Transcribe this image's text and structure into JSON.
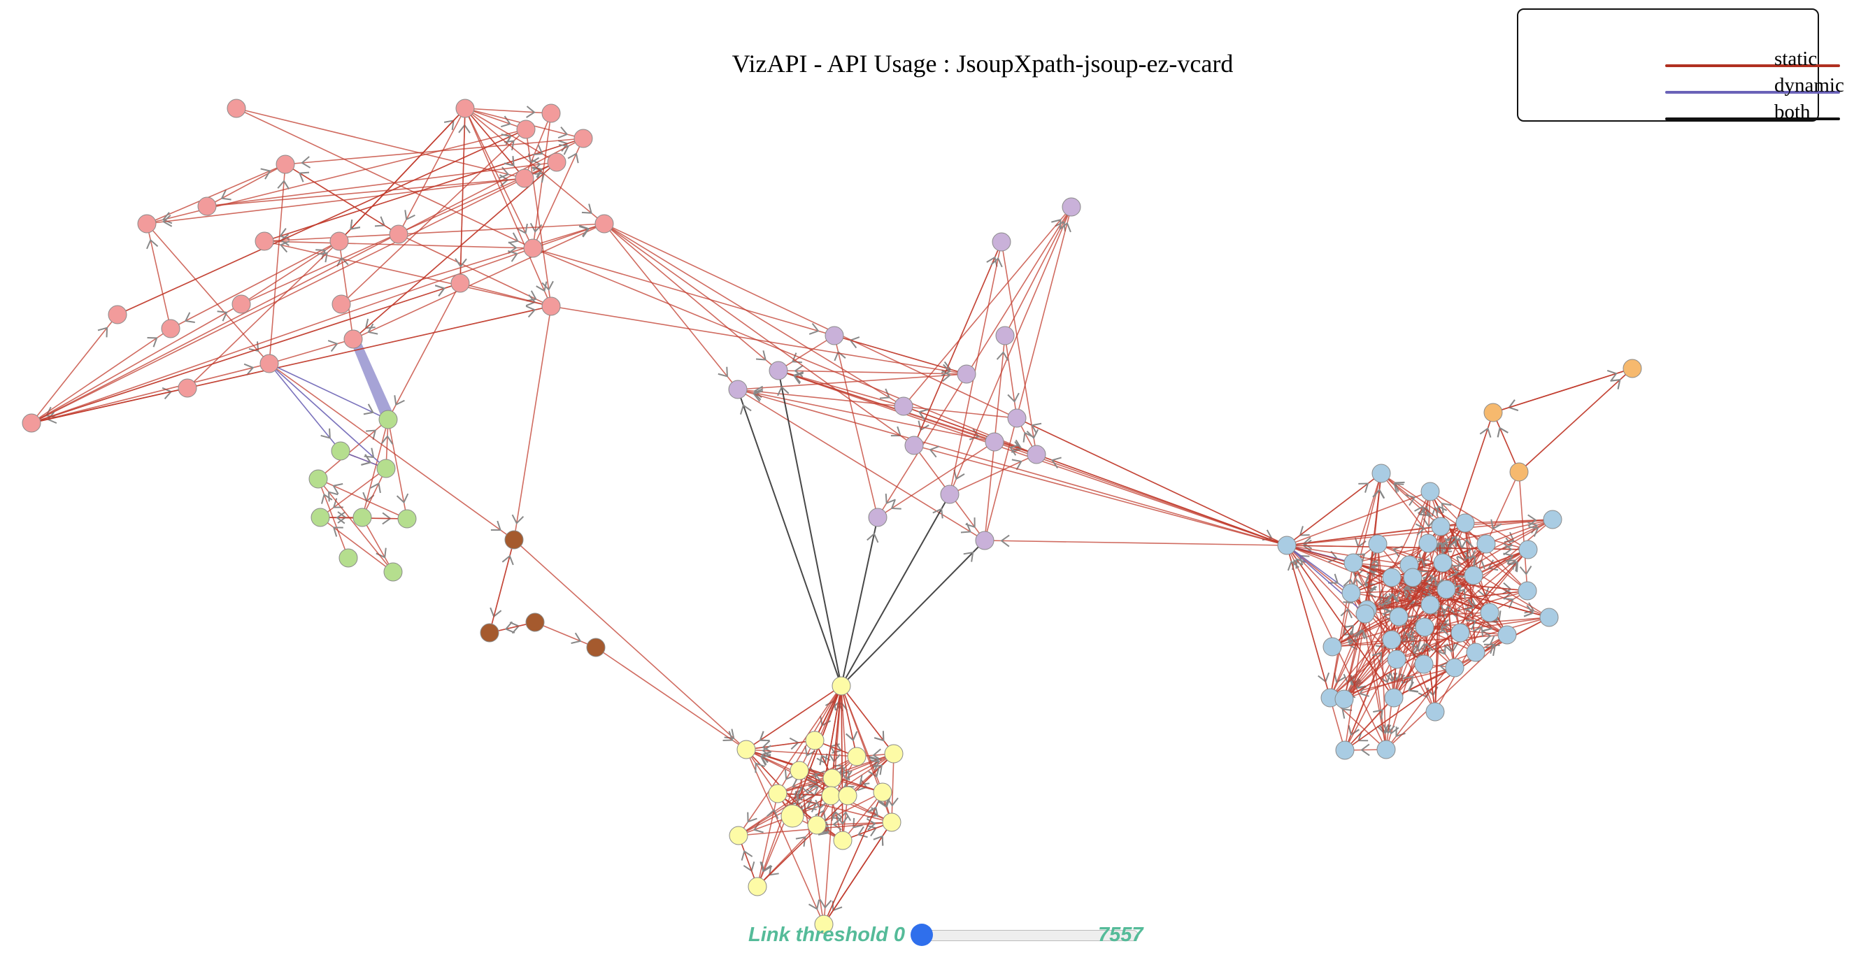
{
  "title": "VizAPI - API Usage : JsoupXpath-jsoup-ez-vcard",
  "legend": {
    "items": [
      {
        "label": "static",
        "color": "#b03020"
      },
      {
        "label": "dynamic",
        "color": "#6a62b8"
      },
      {
        "label": "both",
        "color": "#111111"
      }
    ]
  },
  "threshold": {
    "label": "Link threshold 0",
    "max": "7557",
    "value": 0
  },
  "colors": {
    "pink": "#f29b9b",
    "green": "#b5de8e",
    "brown": "#a55a2e",
    "purple": "#c9b1d9",
    "blue": "#a9cce3",
    "yellow": "#fdfba6",
    "orange": "#f6b96e",
    "static_edge": "#c0392b",
    "dynamic_edge": "#6b63b5",
    "both_edge": "#333333",
    "arrow": "#888888"
  }
}
